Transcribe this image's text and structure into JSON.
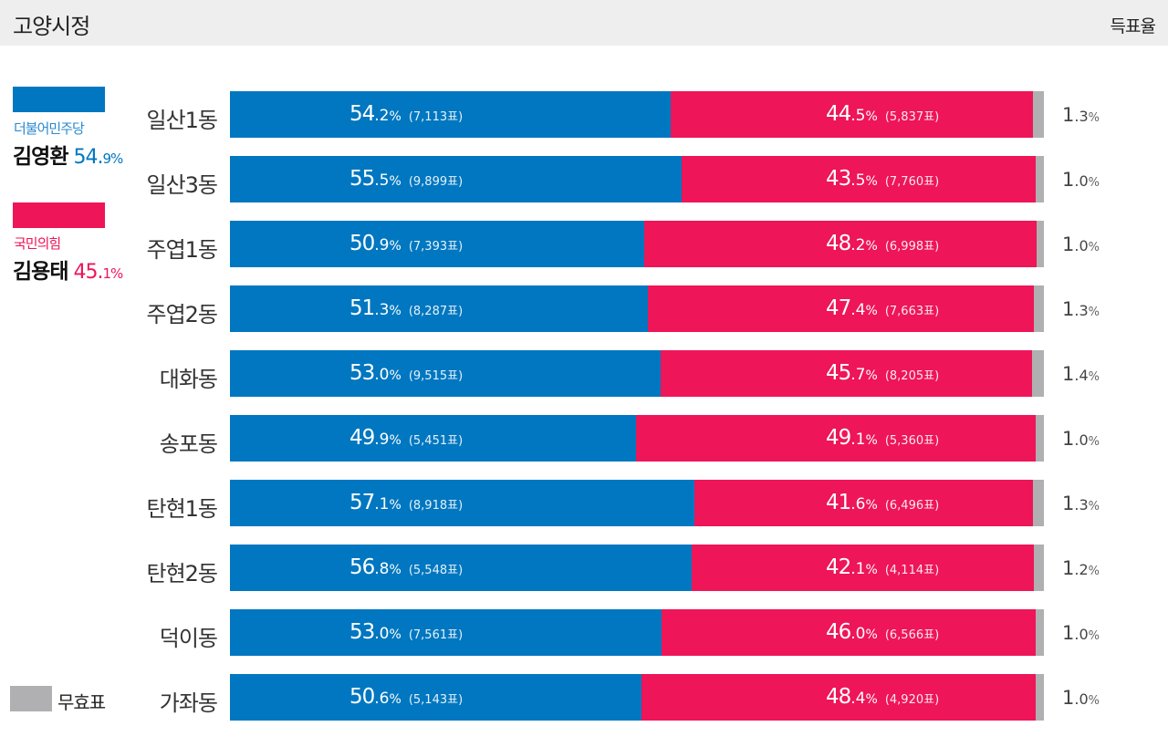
{
  "header": {
    "title": "고양시정",
    "metric": "득표율"
  },
  "colors": {
    "party_a": "#0077c0",
    "party_b": "#ee1558",
    "invalid": "#b0b0b2"
  },
  "chart_data": {
    "type": "bar",
    "stacked": true,
    "orientation": "horizontal",
    "title": "고양시정",
    "ylabel": "득표율",
    "categories": [
      "일산1동",
      "일산3동",
      "주엽1동",
      "주엽2동",
      "대화동",
      "송포동",
      "탄현1동",
      "탄현2동",
      "덕이동",
      "가좌동"
    ],
    "series": [
      {
        "name": "김영환",
        "party": "더불어민주당",
        "total_pct": "54.9",
        "values": [
          54.2,
          55.5,
          50.9,
          51.3,
          53.0,
          49.9,
          57.1,
          56.8,
          53.0,
          50.6
        ],
        "votes": [
          "7,113표",
          "9,899표",
          "7,393표",
          "8,287표",
          "9,515표",
          "5,451표",
          "8,918표",
          "5,548표",
          "7,561표",
          "5,143표"
        ]
      },
      {
        "name": "김용태",
        "party": "국민의힘",
        "total_pct": "45.1",
        "values": [
          44.5,
          43.5,
          48.2,
          47.4,
          45.7,
          49.1,
          41.6,
          42.1,
          46.0,
          48.4
        ],
        "votes": [
          "5,837표",
          "7,760표",
          "6,998표",
          "7,663표",
          "8,205표",
          "5,360표",
          "6,496표",
          "4,114표",
          "6,566표",
          "4,920표"
        ]
      },
      {
        "name": "무효표",
        "values": [
          1.3,
          1.0,
          1.0,
          1.3,
          1.4,
          1.0,
          1.3,
          1.2,
          1.0,
          1.0
        ]
      }
    ],
    "xlim": [
      0,
      100
    ]
  }
}
